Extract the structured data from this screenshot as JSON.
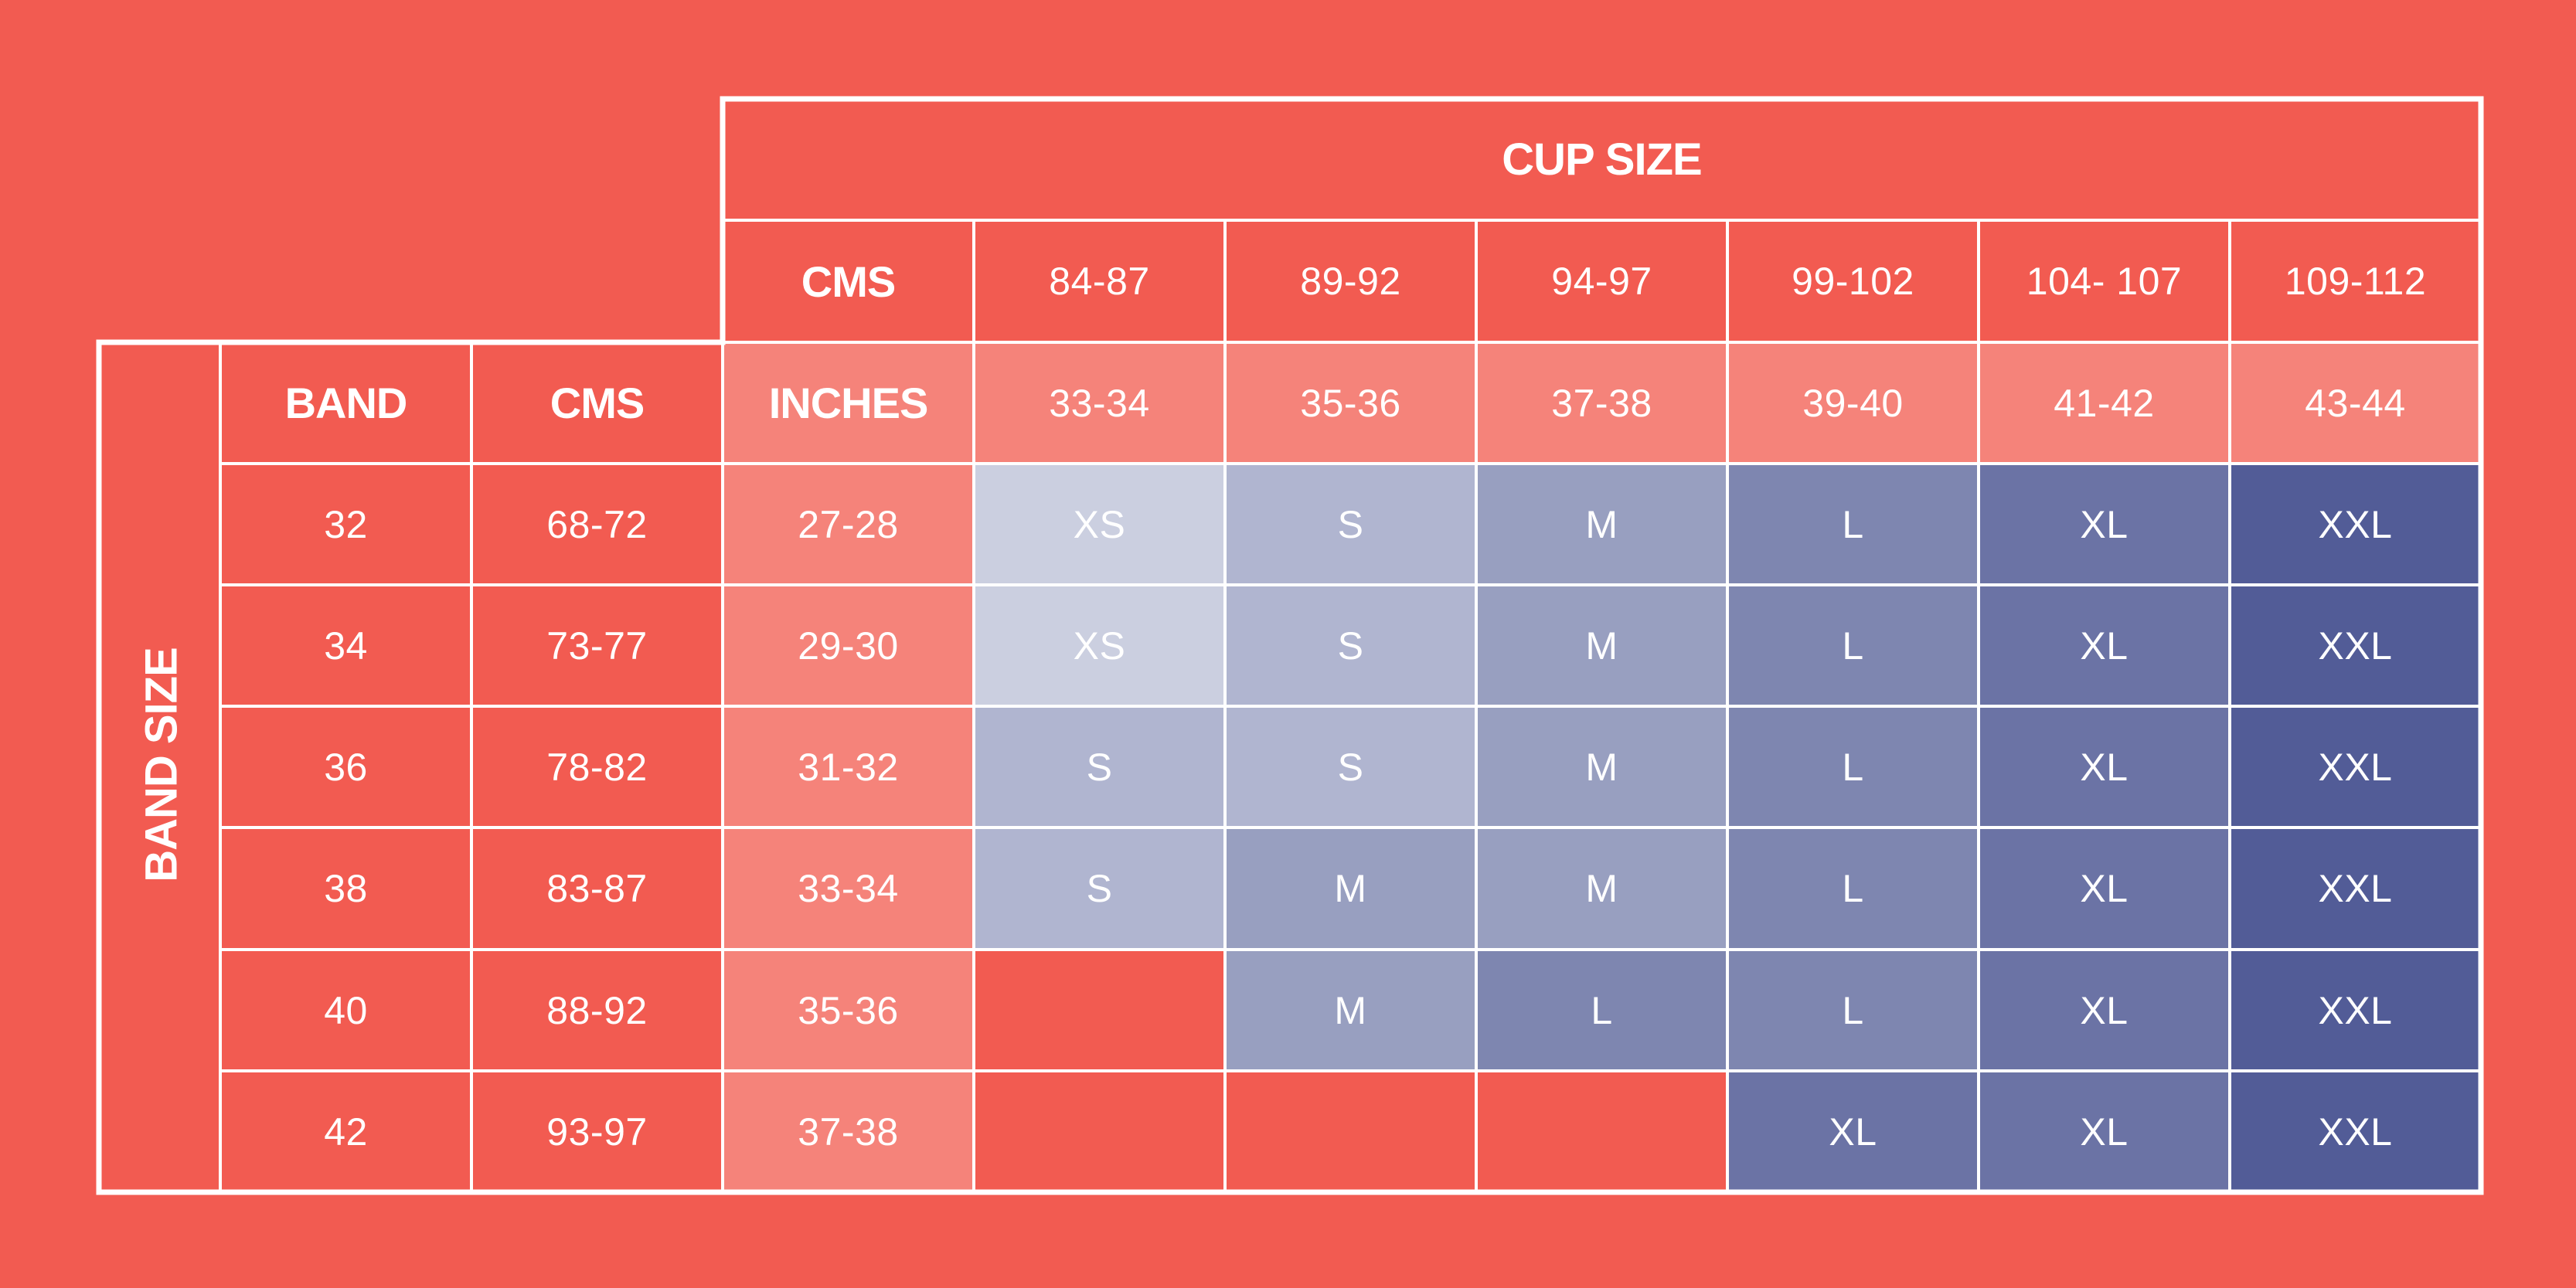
{
  "cup_size_title": "CUP SIZE",
  "band_size_title": "BAND SIZE",
  "header_row": {
    "unit_label": "CMS",
    "cup_cms": [
      "84-87",
      "89-92",
      "94-97",
      "99-102",
      "104- 107",
      "109-112"
    ]
  },
  "subheader_row": {
    "band_label": "BAND",
    "cms_label": "CMS",
    "inches_label": "INCHES",
    "cup_inches": [
      "33-34",
      "35-36",
      "37-38",
      "39-40",
      "41-42",
      "43-44"
    ]
  },
  "rows": [
    {
      "band": "32",
      "cms": "68-72",
      "inches": "27-28",
      "sizes": [
        "XS",
        "S",
        "M",
        "L",
        "XL",
        "XXL"
      ]
    },
    {
      "band": "34",
      "cms": "73-77",
      "inches": "29-30",
      "sizes": [
        "XS",
        "S",
        "M",
        "L",
        "XL",
        "XXL"
      ]
    },
    {
      "band": "36",
      "cms": "78-82",
      "inches": "31-32",
      "sizes": [
        "S",
        "S",
        "M",
        "L",
        "XL",
        "XXL"
      ]
    },
    {
      "band": "38",
      "cms": "83-87",
      "inches": "33-34",
      "sizes": [
        "S",
        "M",
        "M",
        "L",
        "XL",
        "XXL"
      ]
    },
    {
      "band": "40",
      "cms": "88-92",
      "inches": "35-36",
      "sizes": [
        "",
        "M",
        "L",
        "L",
        "XL",
        "XXL"
      ]
    },
    {
      "band": "42",
      "cms": "93-97",
      "inches": "37-38",
      "sizes": [
        "",
        "",
        "",
        "XL",
        "XL",
        "XXL"
      ]
    }
  ],
  "colors": {
    "background": "#f25b51",
    "light_cell": "#f5837a",
    "grid_line": "#ffffff",
    "XS": "#cbcfe0",
    "S": "#b0b5d0",
    "M": "#989fc0",
    "L": "#7e86b0",
    "XL": "#6b73a5",
    "XXL": "#525c97"
  }
}
